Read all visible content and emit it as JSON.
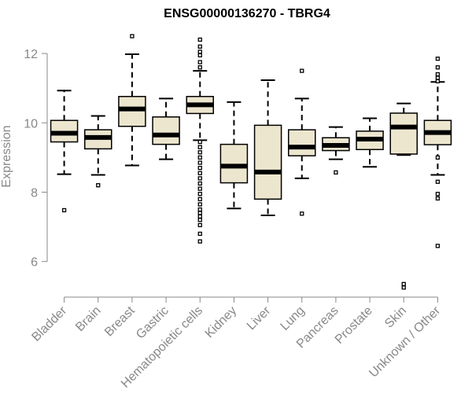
{
  "chart_data": {
    "type": "boxplot",
    "title": "ENSG00000136270 - TBRG4",
    "xlabel": "",
    "ylabel": "Expression",
    "ylim": [
      5.2,
      12.75
    ],
    "yticks": [
      6,
      8,
      10,
      12
    ],
    "box_fill": "#ede6cf",
    "categories": [
      "Bladder",
      "Brain",
      "Breast",
      "Gastric",
      "Hematopoietic cells",
      "Kidney",
      "Liver",
      "Lung",
      "Pancreas",
      "Prostate",
      "Skin",
      "Unknown / Other"
    ],
    "boxes": [
      {
        "name": "Bladder",
        "q1": 9.45,
        "median": 9.7,
        "q3": 10.07,
        "whisker_low": 8.52,
        "whisker_high": 10.93,
        "outliers": [
          7.48
        ]
      },
      {
        "name": "Brain",
        "q1": 9.25,
        "median": 9.58,
        "q3": 9.8,
        "whisker_low": 8.5,
        "whisker_high": 10.2,
        "outliers": [
          8.2
        ]
      },
      {
        "name": "Breast",
        "q1": 9.9,
        "median": 10.4,
        "q3": 10.76,
        "whisker_low": 8.77,
        "whisker_high": 11.98,
        "outliers": [
          12.5
        ]
      },
      {
        "name": "Gastric",
        "q1": 9.38,
        "median": 9.65,
        "q3": 10.17,
        "whisker_low": 8.95,
        "whisker_high": 10.7,
        "outliers": []
      },
      {
        "name": "Hematopoietic cells",
        "q1": 10.27,
        "median": 10.52,
        "q3": 10.76,
        "whisker_low": 9.5,
        "whisker_high": 11.5,
        "outliers": [
          12.4,
          12.2,
          12.05,
          11.95,
          11.75,
          11.6,
          9.45,
          9.3,
          9.15,
          9.0,
          8.85,
          8.7,
          8.55,
          8.4,
          8.25,
          8.1,
          7.95,
          7.8,
          7.65,
          7.5,
          7.4,
          7.3,
          7.2,
          7.05,
          6.8,
          6.58
        ]
      },
      {
        "name": "Kidney",
        "q1": 8.27,
        "median": 8.75,
        "q3": 9.38,
        "whisker_low": 7.53,
        "whisker_high": 10.6,
        "outliers": []
      },
      {
        "name": "Liver",
        "q1": 7.8,
        "median": 8.58,
        "q3": 9.93,
        "whisker_low": 7.33,
        "whisker_high": 11.23,
        "outliers": []
      },
      {
        "name": "Lung",
        "q1": 9.05,
        "median": 9.3,
        "q3": 9.8,
        "whisker_low": 8.4,
        "whisker_high": 10.7,
        "outliers": [
          11.5,
          7.38
        ]
      },
      {
        "name": "Pancreas",
        "q1": 9.2,
        "median": 9.35,
        "q3": 9.57,
        "whisker_low": 8.95,
        "whisker_high": 9.88,
        "outliers": [
          8.57
        ]
      },
      {
        "name": "Prostate",
        "q1": 9.23,
        "median": 9.53,
        "q3": 9.76,
        "whisker_low": 8.73,
        "whisker_high": 10.13,
        "outliers": []
      },
      {
        "name": "Skin",
        "q1": 9.1,
        "median": 9.88,
        "q3": 10.28,
        "whisker_low": 9.07,
        "whisker_high": 10.56,
        "outliers": [
          5.35,
          5.25
        ]
      },
      {
        "name": "Unknown / Other",
        "q1": 9.37,
        "median": 9.72,
        "q3": 10.07,
        "whisker_low": 8.5,
        "whisker_high": 11.18,
        "outliers": [
          11.85,
          11.6,
          11.4,
          11.3,
          11.2,
          9.0,
          8.3,
          7.95,
          7.82,
          6.45
        ]
      }
    ]
  }
}
